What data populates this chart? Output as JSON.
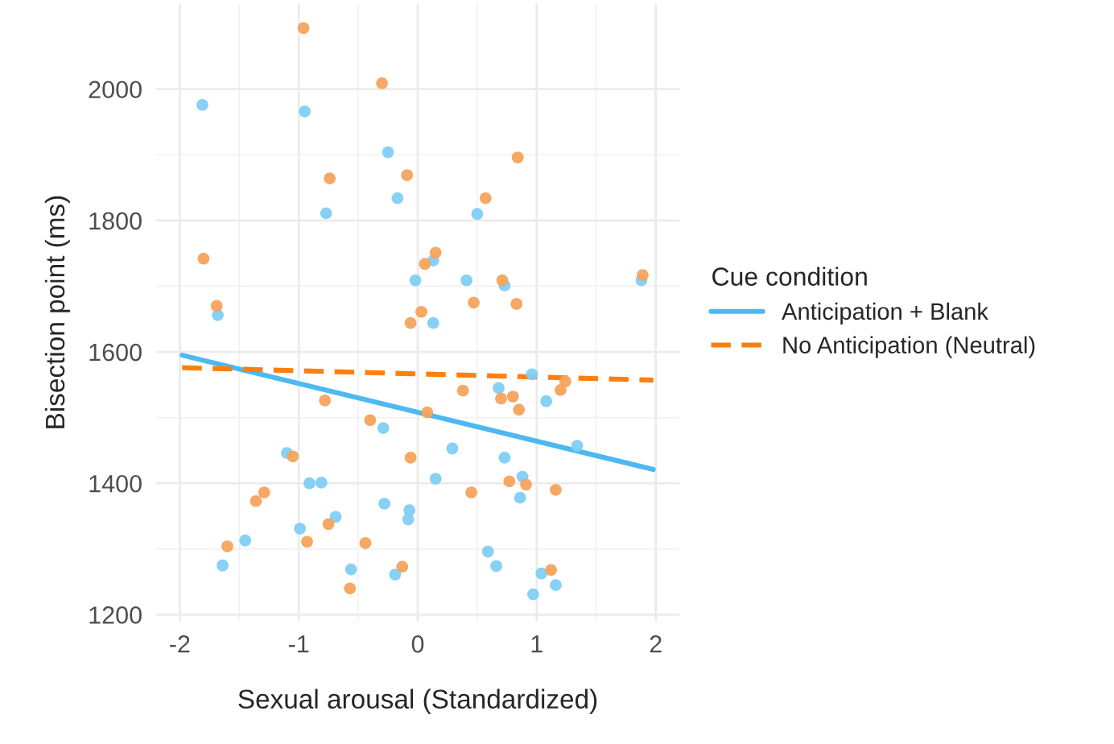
{
  "chart_data": {
    "type": "scatter",
    "xlabel": "Sexual arousal (Standardized)",
    "ylabel": "Bisection point (ms)",
    "legend_title": "Cue condition",
    "series": [
      {
        "color": "#81cdf5",
        "x": [
          -1.81,
          -0.95,
          -0.25,
          -0.17,
          -0.77,
          -1.68,
          0.5,
          0.13,
          -0.02,
          0.41,
          0.73,
          1.88,
          0.13,
          -0.29,
          -1.1,
          -0.91,
          -0.81,
          -0.28,
          -0.69,
          -0.99,
          -1.45,
          -1.64,
          -0.56,
          -0.19,
          0.96,
          0.68,
          1.08,
          0.29,
          1.34,
          0.73,
          0.15,
          0.88,
          0.86,
          -0.07,
          -0.08,
          0.59,
          0.66,
          1.04,
          1.16,
          0.97
        ],
        "values": [
          1976,
          1966,
          1904,
          1834,
          1811,
          1656,
          1810,
          1739,
          1709,
          1709,
          1701,
          1709,
          1644,
          1484,
          1446,
          1400,
          1401,
          1369,
          1349,
          1331,
          1313,
          1275,
          1269,
          1261,
          1566,
          1545,
          1525,
          1453,
          1457,
          1439,
          1407,
          1410,
          1378,
          1359,
          1345,
          1296,
          1274,
          1263,
          1245,
          1231
        ]
      },
      {
        "color": "#f5a35c",
        "x": [
          -0.96,
          -0.3,
          -0.74,
          -1.8,
          -1.69,
          -0.09,
          0.84,
          0.57,
          0.15,
          0.06,
          0.71,
          1.89,
          0.47,
          0.83,
          0.03,
          -0.06,
          -0.78,
          -0.4,
          -1.05,
          -1.29,
          -1.36,
          -0.75,
          -0.93,
          -0.44,
          -1.6,
          -0.57,
          -0.13,
          0.38,
          0.7,
          0.8,
          0.85,
          1.2,
          1.24,
          0.08,
          -0.06,
          0.45,
          0.77,
          0.91,
          1.16,
          1.12
        ],
        "values": [
          2093,
          2009,
          1864,
          1742,
          1670,
          1869,
          1896,
          1834,
          1751,
          1734,
          1709,
          1717,
          1675,
          1673,
          1661,
          1644,
          1526,
          1496,
          1441,
          1386,
          1373,
          1338,
          1311,
          1309,
          1304,
          1240,
          1273,
          1541,
          1529,
          1532,
          1512,
          1542,
          1555,
          1508,
          1439,
          1386,
          1403,
          1398,
          1390,
          1268
        ]
      },
      {
        "type": "line",
        "name": "Anticipation + Blank",
        "color": "#4db8f2",
        "line_style": "solid",
        "x": [
          -1.98,
          1.98
        ],
        "values": [
          1595,
          1421
        ]
      },
      {
        "type": "line",
        "name": "No Anticipation (Neutral)",
        "color": "#ff7f0e",
        "line_style": "dashed",
        "x": [
          -1.98,
          1.98
        ],
        "values": [
          1576,
          1557
        ]
      }
    ],
    "xlim": [
      -2.2,
      2.2
    ],
    "xticks": [
      -2,
      -1,
      0,
      1,
      2
    ],
    "ylim": [
      1190,
      2130
    ],
    "yticks": [
      1200,
      1400,
      1600,
      1800,
      2000
    ],
    "grid": true,
    "legend": "right"
  }
}
